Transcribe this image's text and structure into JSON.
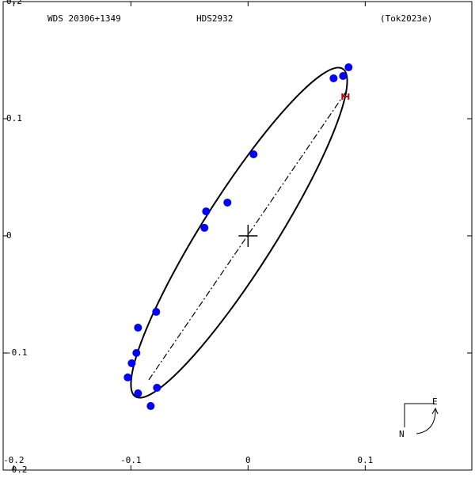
{
  "chart_data": {
    "type": "scatter",
    "header": {
      "wds": "WDS 20306+1349",
      "name": "HDS2932",
      "reference": "(Tok2023e)"
    },
    "compass": {
      "east": "E",
      "north": "N"
    },
    "xlim": [
      -0.209,
      0.191
    ],
    "ylim": [
      -0.2,
      0.2
    ],
    "xticks": [
      -0.2,
      -0.1,
      0.0,
      0.1
    ],
    "yticks": [
      -0.2,
      -0.1,
      0.0,
      0.1,
      0.2
    ],
    "center": [
      0,
      0
    ],
    "series": [
      {
        "color": "#0000ff",
        "x": [
          0.0858,
          0.0811,
          0.073,
          0.0047,
          -0.0176,
          -0.0358,
          -0.0372,
          -0.0784,
          -0.0939,
          -0.0953,
          -0.0993,
          -0.1027,
          -0.0939,
          -0.0777,
          -0.0831
        ],
        "values": [
          0.1439,
          0.1365,
          0.1345,
          0.0696,
          0.0284,
          0.0209,
          0.0068,
          -0.0649,
          -0.0784,
          -0.1,
          -0.1088,
          -0.1209,
          -0.1345,
          -0.1297,
          -0.1453
        ]
      },
      {
        "color": "#cc0000",
        "x": [
          0.0831
        ],
        "values": [
          0.1189
        ]
      }
    ]
  }
}
